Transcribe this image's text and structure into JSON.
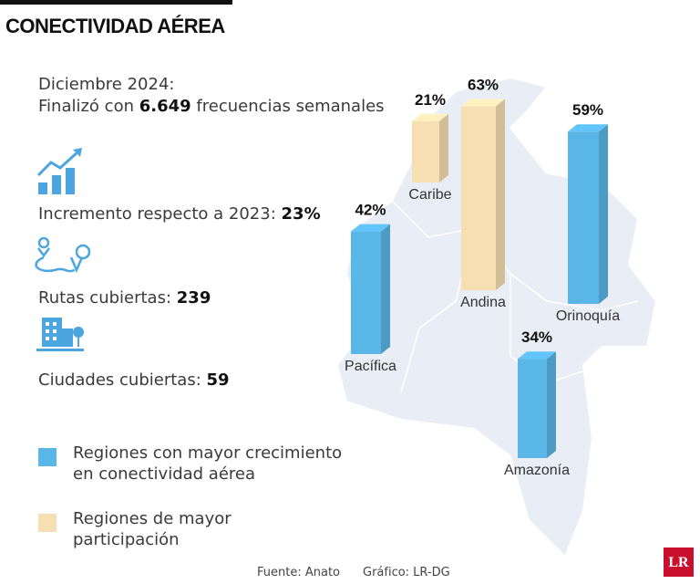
{
  "header": {
    "title": "CONECTIVIDAD AÉREA"
  },
  "summary": {
    "period": "Diciembre 2024:",
    "text_before": "Finalizó con",
    "highlight": "6.649",
    "text_after": "frecuencias semanales"
  },
  "stats": [
    {
      "label": "Incremento respecto a 2023:",
      "value": "23%"
    },
    {
      "label": "Rutas cubiertas:",
      "value": "239"
    },
    {
      "label": "Ciudades cubiertas:",
      "value": "59"
    }
  ],
  "chart_data": {
    "type": "bar",
    "categories": [
      "Caribe",
      "Andina",
      "Orinoquía",
      "Pacífica",
      "Amazonía"
    ],
    "values": [
      21,
      63,
      59,
      42,
      34
    ],
    "value_labels": [
      "21%",
      "63%",
      "59%",
      "42%",
      "34%"
    ],
    "colors": [
      "#f6dfb2",
      "#f6dfb2",
      "#5bb6e8",
      "#5bb6e8",
      "#5bb6e8"
    ],
    "legend": [
      {
        "label": [
          "Regiones con mayor crecimiento",
          "en conectividad aérea"
        ],
        "color": "#5bb6e8"
      },
      {
        "label": [
          "Regiones de mayor",
          "participación"
        ],
        "color": "#f6dfb2"
      }
    ]
  },
  "footer": {
    "source": "Fuente: Anato",
    "credit": "Gráfico: LR-DG",
    "logo": "LR"
  }
}
